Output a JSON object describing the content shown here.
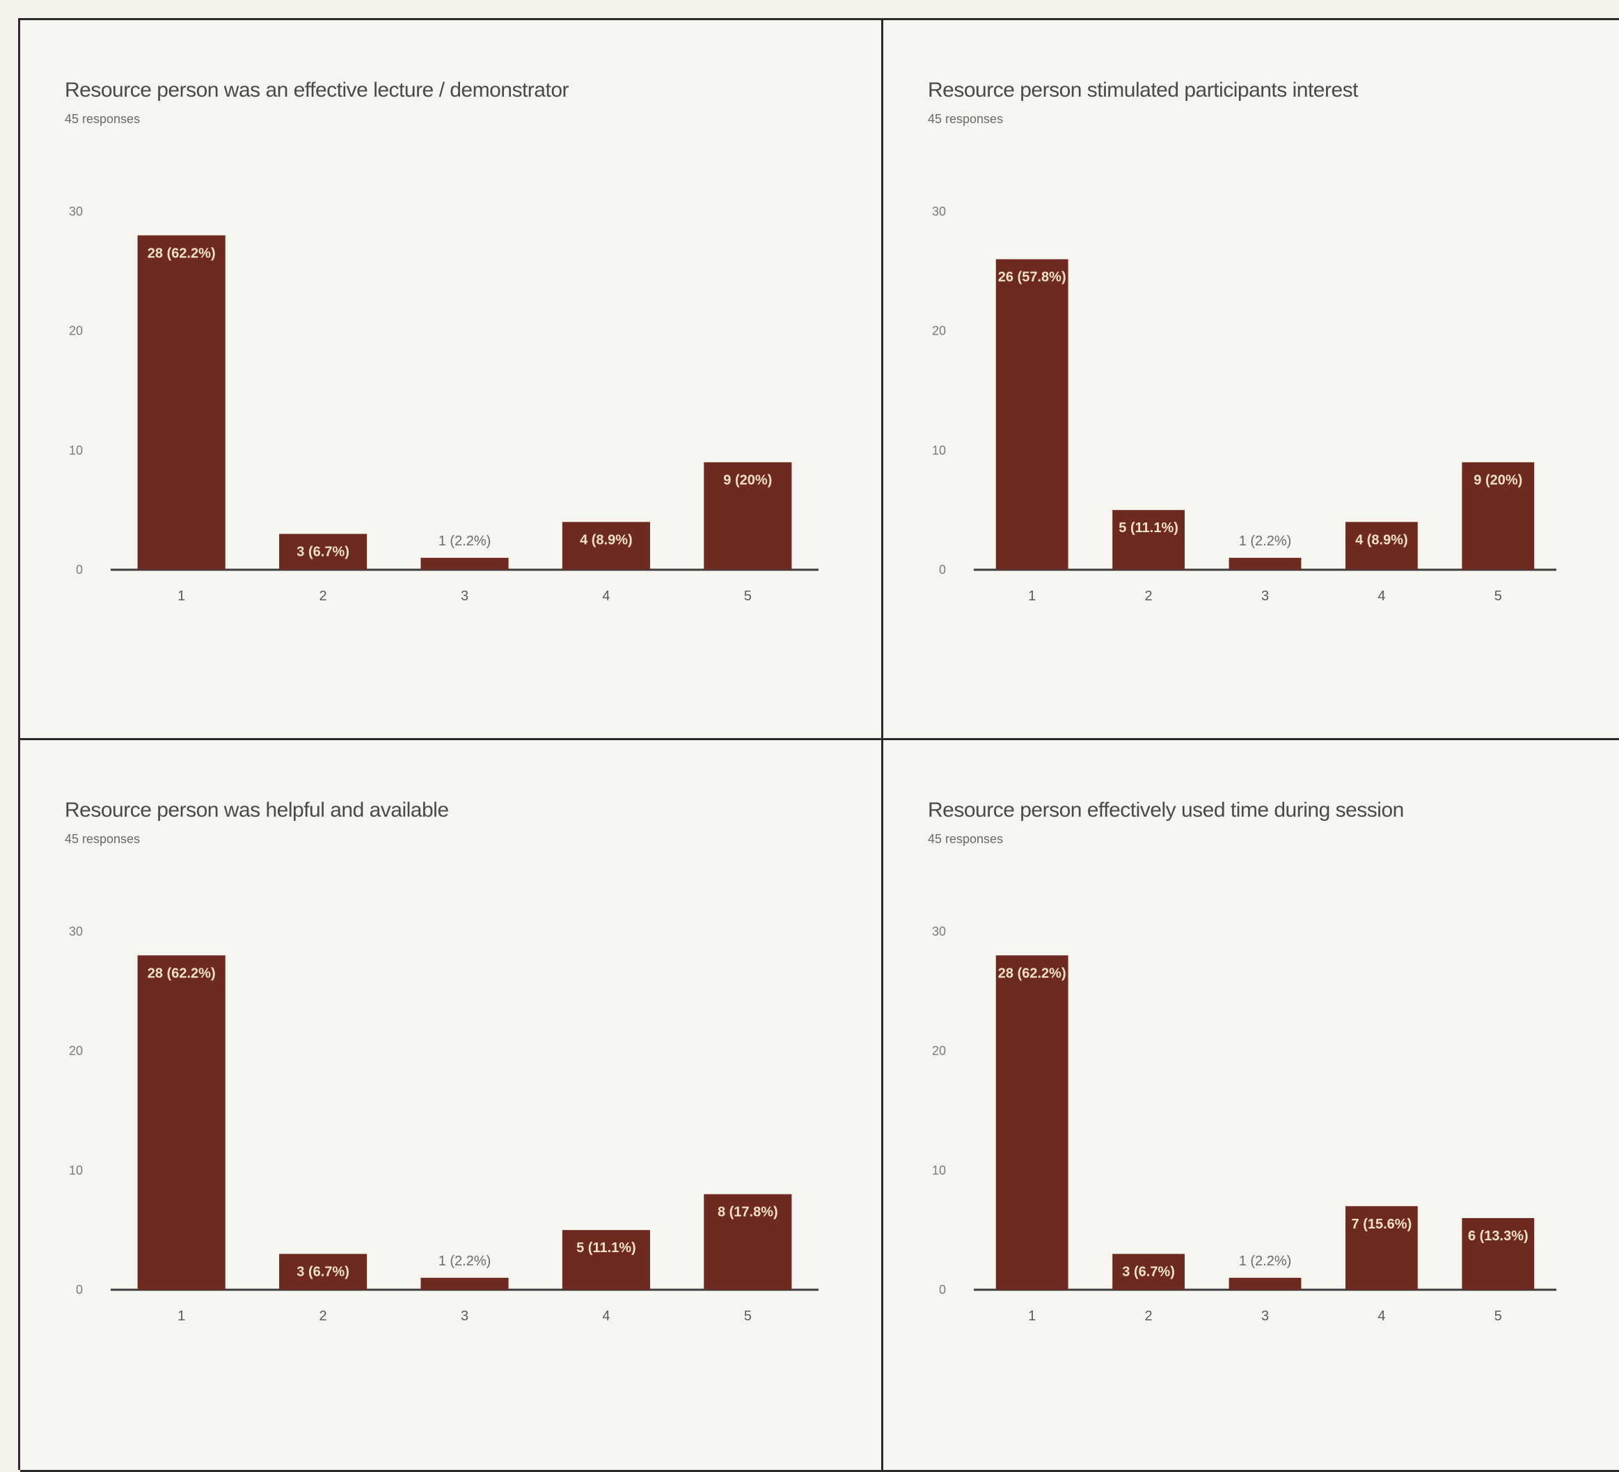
{
  "chart_data": [
    {
      "type": "bar",
      "title": "Resource person was an effective lecture / demonstrator",
      "subtitle": "45 responses",
      "categories": [
        "1",
        "2",
        "3",
        "4",
        "5"
      ],
      "values": [
        28,
        3,
        1,
        4,
        9
      ],
      "data_labels": [
        "28 (62.2%)",
        "3 (6.7%)",
        "1 (2.2%)",
        "4 (8.9%)",
        "9 (20%)"
      ],
      "yticks": [
        0,
        10,
        20,
        30
      ],
      "ylim": [
        0,
        30
      ],
      "grid": false,
      "bar_color": "#6e2a20"
    },
    {
      "type": "bar",
      "title": "Resource person stimulated participants interest",
      "subtitle": "45 responses",
      "categories": [
        "1",
        "2",
        "3",
        "4",
        "5"
      ],
      "values": [
        26,
        5,
        1,
        4,
        9
      ],
      "data_labels": [
        "26 (57.8%)",
        "5 (11.1%)",
        "1 (2.2%)",
        "4 (8.9%)",
        "9 (20%)"
      ],
      "yticks": [
        0,
        10,
        20,
        30
      ],
      "ylim": [
        0,
        30
      ],
      "grid": false,
      "bar_color": "#6e2a20"
    },
    {
      "type": "bar",
      "title": "Resource person was helpful and available",
      "subtitle": "45 responses",
      "categories": [
        "1",
        "2",
        "3",
        "4",
        "5"
      ],
      "values": [
        28,
        3,
        1,
        5,
        8
      ],
      "data_labels": [
        "28 (62.2%)",
        "3 (6.7%)",
        "1 (2.2%)",
        "5 (11.1%)",
        "8 (17.8%)"
      ],
      "yticks": [
        0,
        10,
        20,
        30
      ],
      "ylim": [
        0,
        30
      ],
      "grid": false,
      "bar_color": "#6e2a20"
    },
    {
      "type": "bar",
      "title": "Resource person effectively used time during session",
      "subtitle": "45 responses",
      "categories": [
        "1",
        "2",
        "3",
        "4",
        "5"
      ],
      "values": [
        28,
        3,
        1,
        7,
        6
      ],
      "data_labels": [
        "28 (62.2%)",
        "3 (6.7%)",
        "1 (2.2%)",
        "7 (15.6%)",
        "6 (13.3%)"
      ],
      "yticks": [
        0,
        10,
        20,
        30
      ],
      "ylim": [
        0,
        30
      ],
      "grid": false,
      "bar_color": "#6e2a20"
    }
  ]
}
